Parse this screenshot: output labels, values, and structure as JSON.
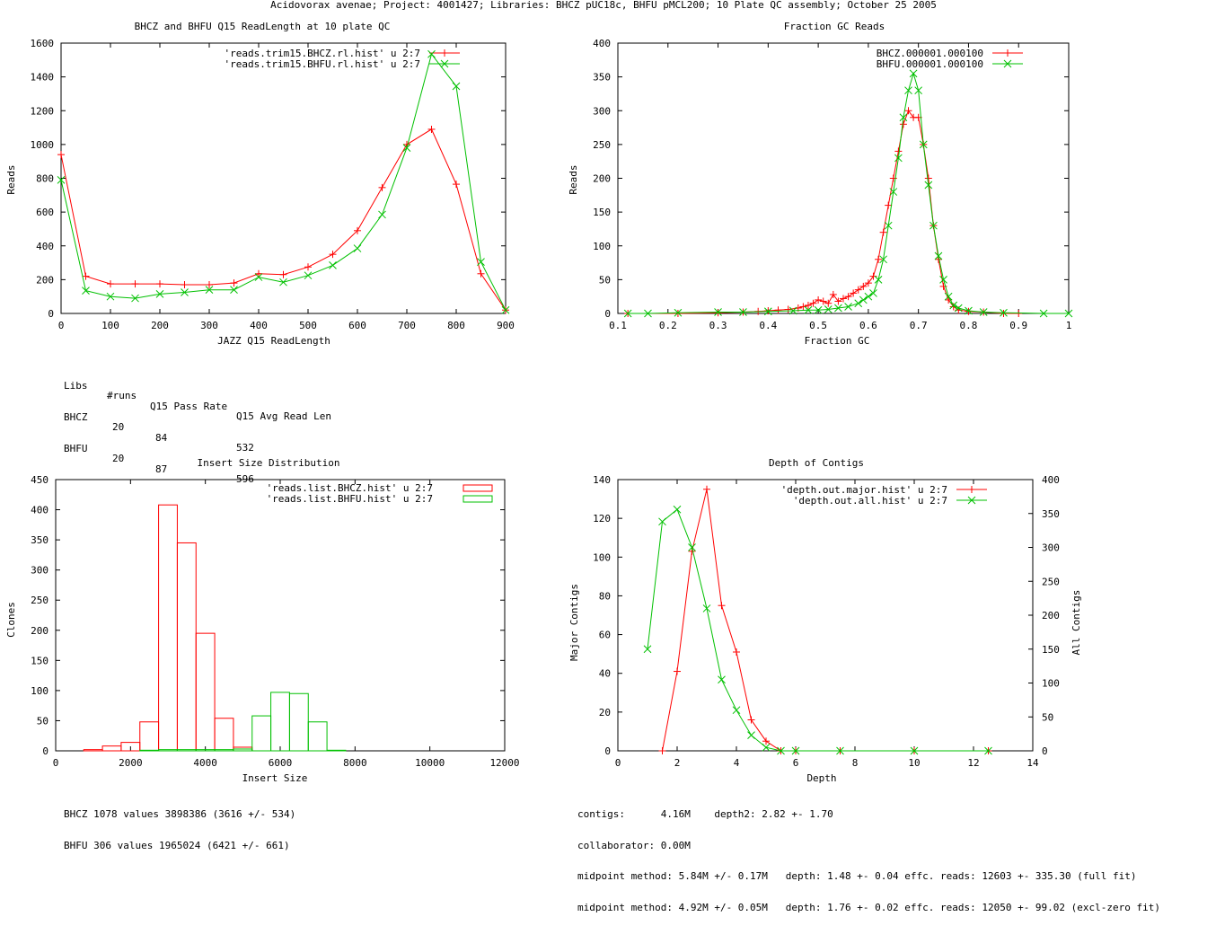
{
  "page_title": "Acidovorax avenae; Project: 4001427; Libraries: BHCZ pUC18c, BHFU pMCL200; 10 Plate QC assembly; October 25 2005",
  "colors": {
    "red": "#ff0000",
    "green": "#00c000"
  },
  "chart_data": [
    {
      "id": "readlength",
      "type": "line",
      "title": "BHCZ and BHFU Q15 ReadLength at 10 plate QC",
      "xlabel": "JAZZ Q15 ReadLength",
      "ylabel": "Reads",
      "xlim": [
        0,
        900
      ],
      "ylim": [
        0,
        1600
      ],
      "xticks": [
        0,
        100,
        200,
        300,
        400,
        500,
        600,
        700,
        800,
        900
      ],
      "yticks": [
        0,
        200,
        400,
        600,
        800,
        1000,
        1200,
        1400,
        1600
      ],
      "series": [
        {
          "name": "'reads.trim15.BHCZ.rl.hist' u 2:7",
          "color": "red",
          "marker": "plus",
          "x": [
            0,
            50,
            100,
            150,
            200,
            250,
            300,
            350,
            400,
            450,
            500,
            550,
            600,
            650,
            700,
            750,
            800,
            850,
            900
          ],
          "y": [
            940,
            220,
            175,
            175,
            175,
            170,
            170,
            180,
            235,
            230,
            275,
            350,
            490,
            745,
            1000,
            1090,
            765,
            235,
            20
          ]
        },
        {
          "name": "'reads.trim15.BHFU.rl.hist' u 2:7",
          "color": "green",
          "marker": "cross",
          "x": [
            0,
            50,
            100,
            150,
            200,
            250,
            300,
            350,
            400,
            450,
            500,
            550,
            600,
            650,
            700,
            750,
            800,
            850,
            900
          ],
          "y": [
            790,
            135,
            100,
            90,
            115,
            125,
            140,
            140,
            215,
            185,
            225,
            285,
            385,
            585,
            980,
            1535,
            1345,
            305,
            20
          ]
        }
      ],
      "table": {
        "header": [
          "Libs",
          "#runs",
          "Q15 Pass Rate",
          "Q15 Avg Read Len"
        ],
        "rows": [
          [
            "BHCZ",
            "20",
            "84",
            "532"
          ],
          [
            "BHFU",
            "20",
            "87",
            "596"
          ]
        ]
      }
    },
    {
      "id": "gc",
      "type": "line",
      "title": "Fraction GC Reads",
      "xlabel": "Fraction GC",
      "ylabel": "Reads",
      "xlim": [
        0.1,
        1
      ],
      "ylim": [
        0,
        400
      ],
      "xticks": [
        "0.1",
        "0.2",
        "0.3",
        "0.4",
        "0.5",
        "0.6",
        "0.7",
        "0.8",
        "0.9",
        "1"
      ],
      "yticks": [
        0,
        50,
        100,
        150,
        200,
        250,
        300,
        350,
        400
      ],
      "series": [
        {
          "name": "BHCZ.000001.000100",
          "color": "red",
          "marker": "plus",
          "x": [
            0.12,
            0.22,
            0.3,
            0.35,
            0.38,
            0.4,
            0.42,
            0.44,
            0.46,
            0.47,
            0.48,
            0.49,
            0.5,
            0.51,
            0.52,
            0.53,
            0.54,
            0.55,
            0.56,
            0.57,
            0.58,
            0.59,
            0.6,
            0.61,
            0.62,
            0.63,
            0.64,
            0.65,
            0.66,
            0.67,
            0.68,
            0.69,
            0.7,
            0.71,
            0.72,
            0.73,
            0.74,
            0.75,
            0.76,
            0.77,
            0.78,
            0.8,
            0.83,
            0.87,
            0.9
          ],
          "y": [
            0,
            0,
            1,
            2,
            3,
            4,
            5,
            6,
            8,
            10,
            12,
            15,
            20,
            18,
            15,
            28,
            18,
            22,
            25,
            30,
            35,
            40,
            45,
            55,
            80,
            120,
            160,
            200,
            240,
            280,
            300,
            290,
            290,
            250,
            200,
            130,
            80,
            40,
            20,
            10,
            5,
            3,
            2,
            0,
            0
          ]
        },
        {
          "name": "BHFU.000001.000100",
          "color": "green",
          "marker": "cross",
          "x": [
            0.12,
            0.16,
            0.22,
            0.3,
            0.35,
            0.4,
            0.45,
            0.48,
            0.5,
            0.52,
            0.54,
            0.56,
            0.58,
            0.59,
            0.6,
            0.61,
            0.62,
            0.63,
            0.64,
            0.65,
            0.66,
            0.67,
            0.68,
            0.69,
            0.7,
            0.71,
            0.72,
            0.73,
            0.74,
            0.75,
            0.76,
            0.77,
            0.78,
            0.8,
            0.83,
            0.87,
            0.95,
            1.0
          ],
          "y": [
            0,
            0,
            1,
            2,
            2,
            3,
            4,
            5,
            5,
            6,
            8,
            10,
            15,
            20,
            25,
            30,
            50,
            80,
            130,
            180,
            230,
            290,
            330,
            355,
            330,
            250,
            190,
            130,
            85,
            50,
            25,
            12,
            8,
            4,
            2,
            1,
            0,
            0
          ]
        }
      ]
    },
    {
      "id": "insert",
      "type": "bar",
      "title": "Insert Size Distribution",
      "xlabel": "Insert Size",
      "ylabel": "Clones",
      "xlim": [
        0,
        12000
      ],
      "ylim": [
        0,
        450
      ],
      "xticks": [
        0,
        2000,
        4000,
        6000,
        8000,
        10000,
        12000
      ],
      "yticks": [
        0,
        50,
        100,
        150,
        200,
        250,
        300,
        350,
        400,
        450
      ],
      "bin_width": 500,
      "series": [
        {
          "name": "'reads.list.BHCZ.hist' u 2:7",
          "color": "red",
          "starts": [
            750,
            1250,
            1750,
            2250,
            2750,
            3250,
            3750,
            4250,
            4750
          ],
          "values": [
            2,
            8,
            14,
            48,
            408,
            345,
            195,
            54,
            6
          ]
        },
        {
          "name": "'reads.list.BHFU.hist' u 2:7",
          "color": "green",
          "starts": [
            2250,
            2750,
            3250,
            3750,
            4250,
            4750,
            5250,
            5750,
            6250,
            6750,
            7250
          ],
          "values": [
            1,
            2,
            2,
            2,
            2,
            3,
            58,
            97,
            95,
            48,
            1
          ]
        }
      ],
      "notes": [
        "BHCZ 1078 values 3898386 (3616 +/- 534)",
        "BHFU 306 values 1965024 (6421 +/- 661)"
      ]
    },
    {
      "id": "depth",
      "type": "line",
      "title": "Depth of Contigs",
      "xlabel": "Depth",
      "ylabel": "Major Contigs",
      "y2label": "All Contigs",
      "xlim": [
        0,
        14
      ],
      "ylim": [
        0,
        140
      ],
      "y2lim": [
        0,
        400
      ],
      "xticks": [
        0,
        2,
        4,
        6,
        8,
        10,
        12,
        14
      ],
      "yticks": [
        0,
        20,
        40,
        60,
        80,
        100,
        120,
        140
      ],
      "y2ticks": [
        0,
        50,
        100,
        150,
        200,
        250,
        300,
        350,
        400
      ],
      "series": [
        {
          "name": "'depth.out.major.hist' u 2:7",
          "color": "red",
          "marker": "plus",
          "axis": "y",
          "x": [
            1.5,
            2,
            2.5,
            3,
            3.5,
            4,
            4.5,
            5,
            5.5,
            6,
            7.5,
            10,
            12.5
          ],
          "y": [
            0,
            41,
            103,
            135,
            75,
            51,
            16,
            5,
            0,
            0,
            0,
            0,
            0
          ]
        },
        {
          "name": "'depth.out.all.hist' u 2:7",
          "color": "green",
          "marker": "cross",
          "axis": "y2",
          "x": [
            1,
            1.5,
            2,
            2.5,
            3,
            3.5,
            4,
            4.5,
            5,
            5.5,
            6,
            7.5,
            10,
            12.5
          ],
          "y": [
            150,
            338,
            356,
            300,
            210,
            105,
            60,
            23,
            5,
            0,
            0,
            0,
            0,
            0
          ]
        }
      ],
      "notes": [
        "contigs:      4.16M    depth2: 2.82 +- 1.70",
        "collaborator: 0.00M",
        "midpoint method: 5.84M +/- 0.17M   depth: 1.48 +- 0.04 effc. reads: 12603 +- 335.30 (full fit)",
        "midpoint method: 4.92M +/- 0.05M   depth: 1.76 +- 0.02 effc. reads: 12050 +- 99.02 (excl-zero fit)"
      ]
    }
  ]
}
